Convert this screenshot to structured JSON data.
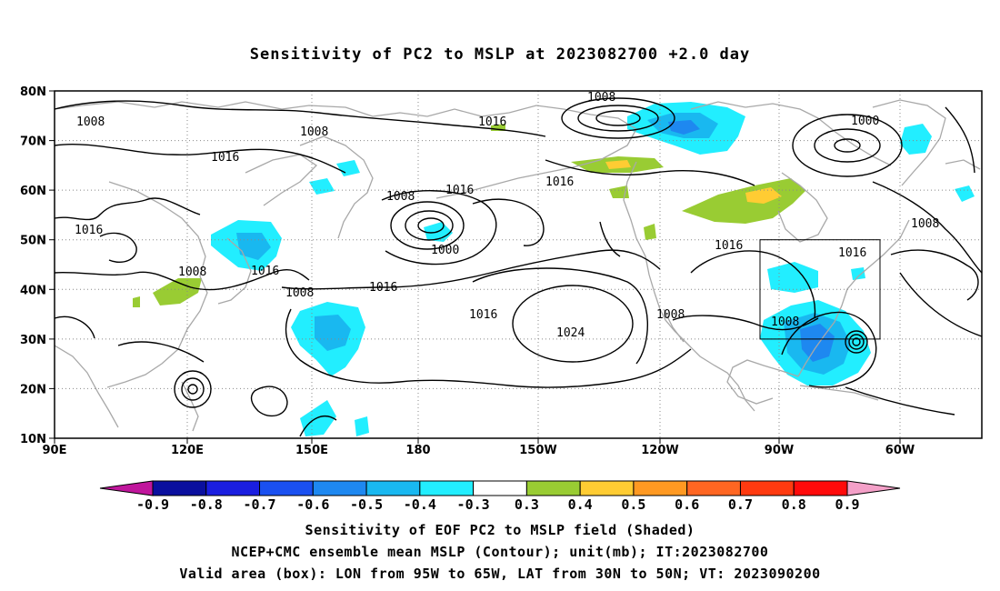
{
  "title": "Sensitivity of PC2 to MSLP at 2023082700 +2.0 day",
  "lat_labels": [
    "80N",
    "70N",
    "60N",
    "50N",
    "40N",
    "30N",
    "20N",
    "10N"
  ],
  "lon_labels": [
    "90E",
    "120E",
    "150E",
    "180",
    "150W",
    "120W",
    "90W",
    "60W"
  ],
  "contour_labels": [
    "1008",
    "1008",
    "1008",
    "1016",
    "1000",
    "1016",
    "1016",
    "1008",
    "1016",
    "1016",
    "1016",
    "1000",
    "1016",
    "1008",
    "1016",
    "1024",
    "1008",
    "1008",
    "1016",
    "1008",
    "1016",
    "1008"
  ],
  "colorbar": {
    "labels": [
      "-0.9",
      "-0.8",
      "-0.7",
      "-0.6",
      "-0.5",
      "-0.4",
      "-0.3",
      "0.3",
      "0.4",
      "0.5",
      "0.6",
      "0.7",
      "0.8",
      "0.9"
    ],
    "colors": [
      "#c0169c",
      "#0a0f9e",
      "#1a1ee0",
      "#1a50f0",
      "#1e88f0",
      "#19b8f0",
      "#22eeff",
      "#ffffff",
      "#99cc33",
      "#ffcc33",
      "#ff9922",
      "#ff6622",
      "#ff3a10",
      "#ff0a0a",
      "#f4a0c8"
    ]
  },
  "captions": [
    "Sensitivity of EOF PC2 to MSLP field (Shaded)",
    "NCEP+CMC ensemble mean MSLP (Contour); unit(mb); IT:2023082700",
    "Valid area (box): LON from 95W to 65W, LAT from 30N to 50N; VT: 2023090200"
  ],
  "valid_box": {
    "lon_range": [
      "95W",
      "65W"
    ],
    "lat_range": [
      "30N",
      "50N"
    ]
  },
  "colors": {
    "coast": "#a8a8a8",
    "contour": "#000000",
    "grid": "#888888"
  }
}
